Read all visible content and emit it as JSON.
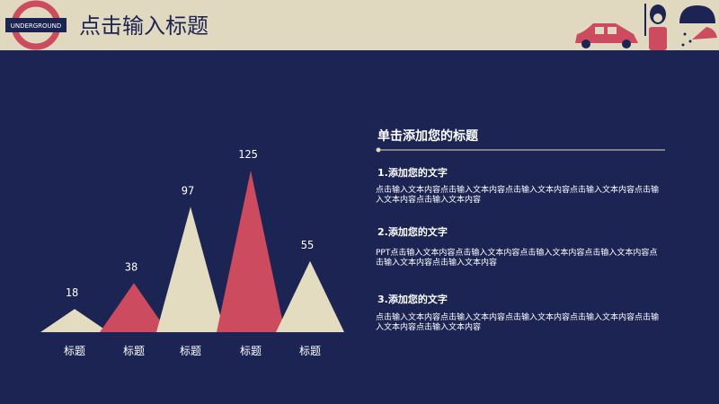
{
  "header": {
    "logo": "UNDERGROUND",
    "title": "点击输入标题"
  },
  "chart_data": {
    "type": "triangle",
    "categories": [
      "标题",
      "标题",
      "标题",
      "标题",
      "标题"
    ],
    "values": [
      18,
      38,
      97,
      125,
      55
    ],
    "colors": [
      "#e4dcc0",
      "#cc4b5f",
      "#e4dcc0",
      "#cc4b5f",
      "#e4dcc0"
    ]
  },
  "panel": {
    "heading": "单击添加您的标题",
    "items": [
      {
        "title": "1.添加您的文字",
        "text": "点击输入文本内容点击输入文本内容点击输入文本内容点击输入文本内容点击输入文本内容点击输入文本内容"
      },
      {
        "title": "2.添加您的文字",
        "text": "PPT点击输入文本内容点击输入文本内容点击输入文本内容点击输入文本内容点击输入文本内容点击输入文本内容"
      },
      {
        "title": "3.添加您的文字",
        "text": "点击输入文本内容点击输入文本内容点击输入文本内容点击输入文本内容点击输入文本内容点击输入文本内容"
      }
    ]
  }
}
